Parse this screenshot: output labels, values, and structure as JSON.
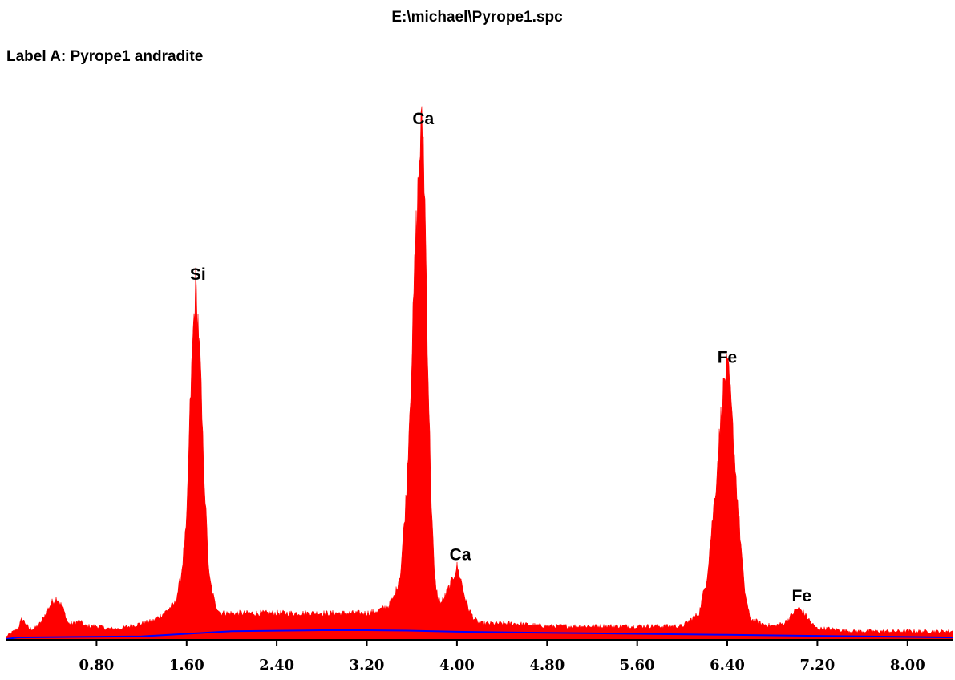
{
  "title": "E:\\michael\\Pyrope1.spc",
  "label": "Label A: Pyrope1 andradite",
  "colors": {
    "spectrum": "#ff0000",
    "background_fit": "#0000ff",
    "axis": "#000000",
    "page": "#ffffff"
  },
  "chart_data": {
    "type": "area",
    "title": "E:\\michael\\Pyrope1.spc",
    "subtitle": "Label A: Pyrope1 andradite",
    "xlabel": "",
    "ylabel": "",
    "xlim": [
      0.0,
      8.4
    ],
    "ylim": [
      0,
      100
    ],
    "grid": false,
    "x_ticks": [
      0.8,
      1.6,
      2.4,
      3.2,
      4.0,
      4.8,
      5.6,
      6.4,
      7.2,
      8.0
    ],
    "x_tick_labels": [
      "0.80",
      "1.60",
      "2.40",
      "3.20",
      "4.00",
      "4.80",
      "5.60",
      "6.40",
      "7.20",
      "8.00"
    ],
    "series": [
      {
        "x": [
          0.0,
          0.1,
          0.14,
          0.2,
          0.25,
          0.3,
          0.35,
          0.4,
          0.45,
          0.5,
          0.55,
          0.6,
          0.65,
          0.7,
          0.75,
          0.8,
          0.9,
          1.0,
          1.1,
          1.2,
          1.3,
          1.4,
          1.5,
          1.55,
          1.6,
          1.63,
          1.66,
          1.68,
          1.7,
          1.72,
          1.74,
          1.77,
          1.8,
          1.85,
          1.9,
          2.0,
          2.2,
          2.4,
          2.6,
          2.8,
          3.0,
          3.2,
          3.3,
          3.4,
          3.45,
          3.5,
          3.55,
          3.6,
          3.63,
          3.66,
          3.68,
          3.7,
          3.72,
          3.74,
          3.77,
          3.8,
          3.83,
          3.86,
          3.9,
          3.95,
          4.0,
          4.03,
          4.06,
          4.1,
          4.15,
          4.2,
          4.3,
          4.5,
          4.8,
          5.2,
          5.6,
          6.0,
          6.15,
          6.22,
          6.3,
          6.35,
          6.38,
          6.4,
          6.42,
          6.45,
          6.5,
          6.55,
          6.6,
          6.7,
          6.8,
          6.9,
          6.95,
          7.0,
          7.03,
          7.06,
          7.1,
          7.15,
          7.2,
          7.3,
          7.5,
          7.8,
          8.1,
          8.4
        ],
        "y": [
          0.5,
          2,
          4,
          2,
          2,
          3,
          5,
          7,
          8,
          6,
          3,
          3,
          3.5,
          2.5,
          2.5,
          2.5,
          2,
          2,
          2.5,
          3,
          3.5,
          5,
          7,
          12,
          22,
          44,
          60,
          68,
          62,
          54,
          40,
          25,
          12,
          7,
          5,
          5,
          5,
          5,
          5,
          5,
          5,
          5,
          5.5,
          6.5,
          8.5,
          13,
          28,
          55,
          75,
          90,
          98,
          97,
          80,
          55,
          28,
          12,
          8,
          7,
          8.5,
          11,
          14,
          12,
          9,
          6,
          4,
          3,
          3,
          3,
          2.5,
          2.5,
          2.5,
          2.5,
          5,
          12,
          30,
          45,
          51,
          52,
          49,
          40,
          24,
          10,
          4,
          3,
          2.5,
          3,
          4,
          5.5,
          6,
          5.5,
          4.5,
          3,
          2,
          2,
          1.5,
          1.5,
          1.5,
          1.5
        ]
      },
      {
        "x": [
          0.0,
          0.1,
          0.6,
          1.2,
          1.6,
          2.0,
          2.4,
          2.8,
          3.2,
          3.6,
          4.0,
          4.4,
          4.8,
          5.6,
          6.4,
          7.2,
          8.0,
          8.4
        ],
        "y": [
          0,
          0.3,
          0.4,
          0.5,
          1.0,
          1.5,
          1.6,
          1.7,
          1.7,
          1.6,
          1.4,
          1.3,
          1.2,
          1.0,
          0.8,
          0.6,
          0.4,
          0.3
        ]
      }
    ],
    "annotations": [
      {
        "text": "Si",
        "x": 1.7,
        "y": 68
      },
      {
        "text": "Ca",
        "x": 3.7,
        "y": 98
      },
      {
        "text": "Ca",
        "x": 4.03,
        "y": 14
      },
      {
        "text": "Fe",
        "x": 6.4,
        "y": 52
      },
      {
        "text": "Fe",
        "x": 7.06,
        "y": 6
      }
    ]
  }
}
